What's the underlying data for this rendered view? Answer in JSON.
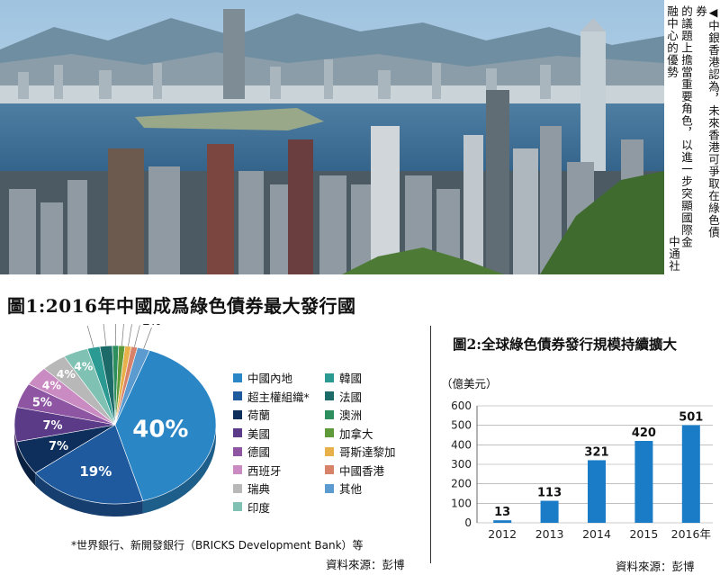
{
  "caption": {
    "lines": [
      "◀中銀香港認為，未來香港可爭取在綠色債券",
      "的議題上擔當重要角色，以進一步突顯國際金",
      "融中心的優勢"
    ],
    "source": "中通社"
  },
  "chart1": {
    "title": "圖1:2016年中國成爲綠色債券最大發行國",
    "footnote": "*世界銀行、新開發銀行（BRICKS Development Bank）等",
    "source": "資料來源：彭博"
  },
  "chart2": {
    "title": "圖2:全球綠色債券發行規模持續擴大",
    "source": "資料來源：彭博"
  },
  "chart_data": [
    {
      "type": "pie",
      "title": "圖1:2016年中國成爲綠色債券最大發行國",
      "labels": [
        "中國內地",
        "超主權組織*",
        "荷蘭",
        "美國",
        "德國",
        "西班牙",
        "瑞典",
        "印度",
        "韓國",
        "法國",
        "澳洲",
        "加拿大",
        "哥斯達黎加",
        "中國香港",
        "其他"
      ],
      "values": [
        40,
        19,
        7,
        7,
        5,
        4,
        4,
        4,
        2,
        2,
        1,
        1,
        1,
        1,
        2
      ],
      "value_labels": [
        "40%",
        "19%",
        "7%",
        "7%",
        "5%",
        "4%",
        "4%",
        "4%",
        "2%",
        "2%",
        "1%",
        "1%",
        "1%",
        "1%",
        "2%"
      ],
      "colors": [
        "#2b86c6",
        "#1f5a9e",
        "#0e2e5c",
        "#5b3a87",
        "#8e55a3",
        "#c98bc1",
        "#b8b8b8",
        "#7fc1b3",
        "#2a9a92",
        "#1c6b69",
        "#2e8f5e",
        "#5f9a3a",
        "#e8b04a",
        "#d9826a",
        "#5b9bcf"
      ],
      "legend_placement": "right"
    },
    {
      "type": "bar",
      "title": "圖2:全球綠色債券發行規模持續擴大",
      "categories": [
        "2012",
        "2013",
        "2014",
        "2015",
        "2016年"
      ],
      "values": [
        13,
        113,
        321,
        420,
        501
      ],
      "ylabel": "（億美元）",
      "ylim": [
        0,
        600
      ],
      "yticks": [
        0,
        100,
        200,
        300,
        400,
        500,
        600
      ],
      "bar_color": "#1a7cc7",
      "grid": true
    }
  ]
}
